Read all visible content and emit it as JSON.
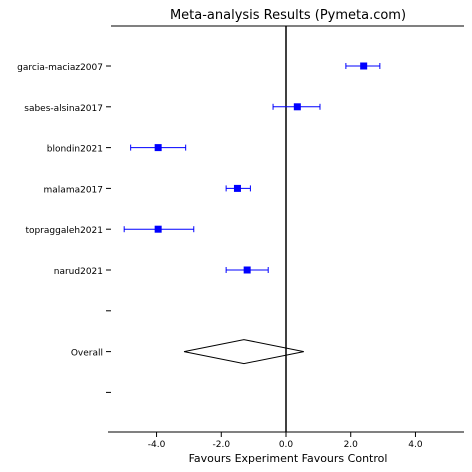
{
  "chart_data": {
    "type": "forest",
    "title": "Meta-analysis Results (Pymeta.com)",
    "xlabel": "Favours Experiment  Favours Control",
    "xlim": [
      -5.5,
      5.5
    ],
    "xticks": [
      -4,
      -2,
      0,
      2,
      4
    ],
    "xtick_labels": [
      "-4.0",
      "-2.0",
      "0.0",
      "2.0",
      "4.0"
    ],
    "reference_line": 0,
    "color": "#0000ff",
    "studies": [
      {
        "name": "garcia-maciaz2007",
        "estimate": 2.4,
        "ci_low": 1.85,
        "ci_high": 2.9
      },
      {
        "name": "sabes-alsina2017",
        "estimate": 0.35,
        "ci_low": -0.4,
        "ci_high": 1.05
      },
      {
        "name": "blondin2021",
        "estimate": -3.95,
        "ci_low": -4.8,
        "ci_high": -3.1
      },
      {
        "name": "malama2017",
        "estimate": -1.5,
        "ci_low": -1.85,
        "ci_high": -1.1
      },
      {
        "name": "topraggaleh2021",
        "estimate": -3.95,
        "ci_low": -5.0,
        "ci_high": -2.85
      },
      {
        "name": "narud2021",
        "estimate": -1.2,
        "ci_low": -1.85,
        "ci_high": -0.55
      }
    ],
    "overall": {
      "name": "Overall",
      "estimate": -1.3,
      "ci_low": -3.15,
      "ci_high": 0.55
    }
  }
}
